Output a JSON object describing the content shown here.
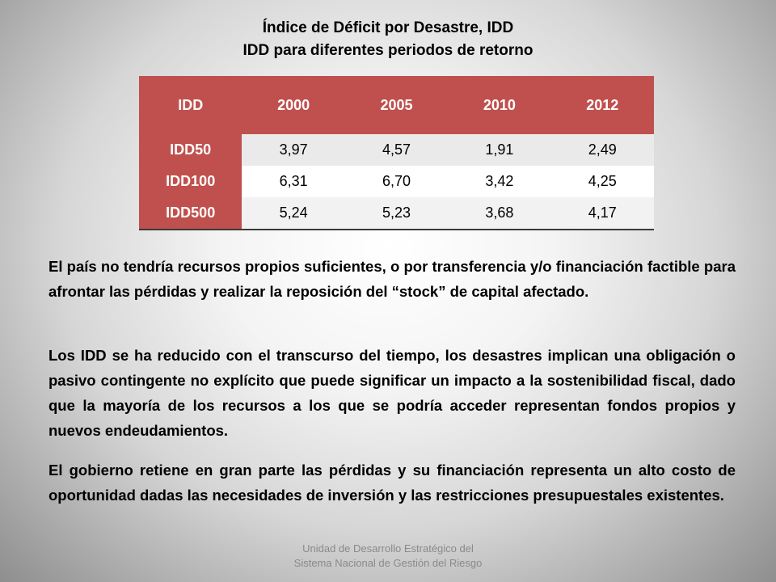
{
  "title": {
    "line1": "Índice de Déficit por Desastre, IDD",
    "line2": "IDD para diferentes periodos de retorno"
  },
  "table": {
    "headers": [
      "IDD",
      "2000",
      "2005",
      "2010",
      "2012"
    ],
    "rows": [
      {
        "label": "IDD50",
        "values": [
          "3,97",
          "4,57",
          "1,91",
          "2,49"
        ]
      },
      {
        "label": "IDD100",
        "values": [
          "6,31",
          "6,70",
          "3,42",
          "4,25"
        ]
      },
      {
        "label": "IDD500",
        "values": [
          "5,24",
          "5,23",
          "3,68",
          "4,17"
        ]
      }
    ],
    "header_color": "#c0504d"
  },
  "paragraphs": [
    "El país no tendría recursos propios suficientes, o por transferencia y/o financiación factible para afrontar las pérdidas y realizar la reposición del “stock” de capital afectado.",
    "Los IDD se ha reducido con el transcurso del tiempo, los desastres implican una obligación o pasivo contingente no explícito que puede significar un impacto a la sostenibilidad fiscal, dado que la mayoría de los recursos a los que se podría acceder representan fondos propios y nuevos endeudamientos.",
    "El gobierno retiene en gran parte las pérdidas y su financiación representa un alto costo de oportunidad dadas las necesidades de inversión y las restricciones presupuestales existentes."
  ],
  "footer": {
    "line1": "Unidad de Desarrollo Estratégico del",
    "line2": "Sistema Nacional de Gestión del Riesgo"
  }
}
